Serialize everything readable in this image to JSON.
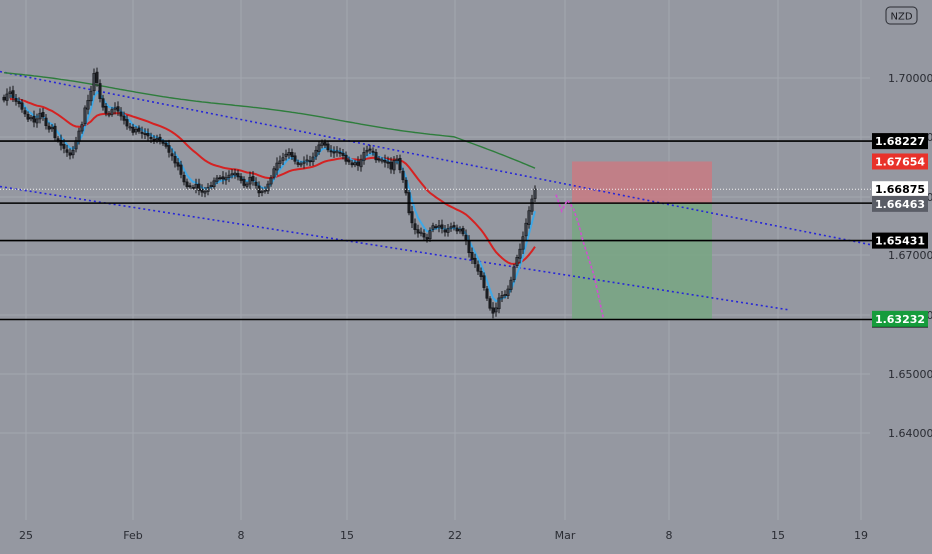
{
  "currency_badge": "NZD",
  "colors": {
    "background": "#9598a1",
    "grid": "#a4a7af",
    "up_candle": "#3f434c",
    "down_candle": "#1c1d22",
    "ema_fast": "#3fa8e6",
    "ema_red": "#d52222",
    "sma_slow": "#2e7d3c",
    "channel": "#2626d8",
    "projection": "#d04fd0",
    "stop_zone": "#c97a82",
    "target_zone": "#78a682",
    "level_line": "#000000",
    "stop_label": "#e8322a",
    "target_label": "#169c3c"
  },
  "chart_data": {
    "type": "candlestick",
    "instrument_currency": "NZD",
    "x_axis_labels": [
      "25",
      "Feb",
      "8",
      "15",
      "22",
      "Mar",
      "8",
      "15",
      "19"
    ],
    "y_axis_ticks": [
      "1.70000",
      "1.69000",
      "1.68000",
      "1.67000",
      "1.66000",
      "1.65000",
      "1.64000"
    ],
    "y_range": [
      1.6288,
      1.7125
    ],
    "horizontal_levels": [
      {
        "label": "1.68227",
        "value": 1.68227
      },
      {
        "label": "1.66484",
        "value": 1.66484
      },
      {
        "label": "1.65431",
        "value": 1.65431
      },
      {
        "label": "1.63214",
        "value": 1.63214
      }
    ],
    "price_tags": [
      {
        "label": "1.67654",
        "value": 1.67654,
        "role": "stop-loss"
      },
      {
        "label": "1.66875",
        "value": 1.66875,
        "role": "current-price"
      },
      {
        "label": "1.66463",
        "value": 1.66463,
        "role": "entry"
      },
      {
        "label": "1.63232",
        "value": 1.63232,
        "role": "take-profit"
      }
    ],
    "trade_setup": {
      "direction": "short",
      "entry": 1.66463,
      "stop_loss": 1.67654,
      "take_profit": 1.63232
    },
    "channel_upper": [
      [
        0,
        1.7018
      ],
      [
        870,
        1.6532
      ]
    ],
    "channel_lower": [
      [
        0,
        1.6695
      ],
      [
        790,
        1.6348
      ]
    ],
    "candles_close": [
      1.6938,
      1.6955,
      1.6961,
      1.6945,
      1.6934,
      1.6928,
      1.6912,
      1.6899,
      1.6884,
      1.6889,
      1.6876,
      1.6885,
      1.6901,
      1.6891,
      1.6866,
      1.6856,
      1.6861,
      1.6832,
      1.6825,
      1.6811,
      1.6802,
      1.6791,
      1.6783,
      1.6797,
      1.6824,
      1.6851,
      1.6869,
      1.6916,
      1.6937,
      1.6963,
      1.7013,
      1.6987,
      1.6942,
      1.6918,
      1.6901,
      1.6899,
      1.6911,
      1.6916,
      1.6907,
      1.6893,
      1.6881,
      1.6865,
      1.6863,
      1.6847,
      1.6856,
      1.685,
      1.6844,
      1.6842,
      1.6837,
      1.6829,
      1.6825,
      1.683,
      1.6822,
      1.6817,
      1.6808,
      1.6791,
      1.6781,
      1.6761,
      1.6752,
      1.6729,
      1.6708,
      1.6695,
      1.6696,
      1.6692,
      1.6701,
      1.6684,
      1.6679,
      1.6681,
      1.6693,
      1.6698,
      1.6711,
      1.6719,
      1.6719,
      1.6716,
      1.672,
      1.6727,
      1.6731,
      1.6733,
      1.6722,
      1.6712,
      1.6698,
      1.6702,
      1.6721,
      1.6711,
      1.6698,
      1.6677,
      1.6681,
      1.6685,
      1.6702,
      1.6719,
      1.6745,
      1.6761,
      1.6767,
      1.6776,
      1.6786,
      1.6791,
      1.6779,
      1.6766,
      1.6757,
      1.6759,
      1.6764,
      1.677,
      1.6765,
      1.6778,
      1.6797,
      1.6812,
      1.6818,
      1.6811,
      1.6798,
      1.6793,
      1.6789,
      1.6795,
      1.679,
      1.6782,
      1.6766,
      1.6764,
      1.6756,
      1.6762,
      1.6754,
      1.677,
      1.6791,
      1.6797,
      1.6797,
      1.6791,
      1.677,
      1.677,
      1.677,
      1.6763,
      1.676,
      1.6744,
      1.6768,
      1.6772,
      1.6742,
      1.6714,
      1.6677,
      1.6621,
      1.6593,
      1.6574,
      1.6564,
      1.6567,
      1.6553,
      1.6547,
      1.6571,
      1.6585,
      1.6581,
      1.6585,
      1.6577,
      1.6567,
      1.6577,
      1.6582,
      1.6581,
      1.657,
      1.6575,
      1.6562,
      1.6545,
      1.6509,
      1.649,
      1.6478,
      1.6457,
      1.6442,
      1.6411,
      1.6381,
      1.6353,
      1.6339,
      1.6354,
      1.6382,
      1.6389,
      1.6392,
      1.6407,
      1.6432,
      1.6469,
      1.6496,
      1.6519,
      1.6554,
      1.6592,
      1.6627,
      1.666,
      1.6688
    ],
    "projection_path": [
      [
        1.6672,
        0
      ],
      [
        1.6626,
        3
      ],
      [
        1.6657,
        6
      ],
      [
        1.6635,
        9
      ],
      [
        1.6588,
        12
      ],
      [
        1.6545,
        14
      ],
      [
        1.6446,
        20
      ],
      [
        1.6323,
        25
      ]
    ],
    "ema_fast_period_label": "",
    "grid": true
  }
}
